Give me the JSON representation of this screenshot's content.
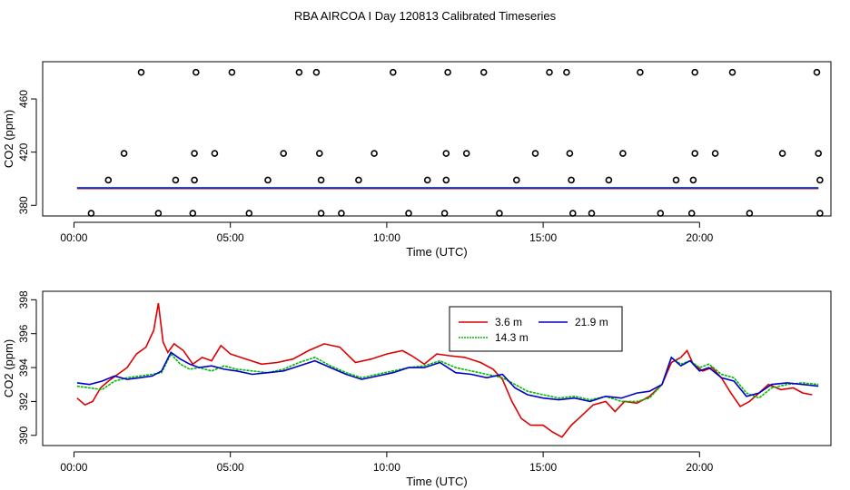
{
  "chart_data": [
    {
      "type": "scatter",
      "title": "RBA AIRCOA I  Day 120813  Calibrated Timeseries",
      "xlabel": "Time (UTC)",
      "ylabel": "CO2 (ppm)",
      "xlim": [
        -1,
        24.2
      ],
      "ylim": [
        372,
        488
      ],
      "x_ticks": [
        0,
        5,
        10,
        15,
        20
      ],
      "x_tick_labels": [
        "00:00",
        "05:00",
        "10:00",
        "15:00",
        "20:00"
      ],
      "y_ticks": [
        380,
        420,
        460
      ],
      "y_tick_labels": [
        "380",
        "420",
        "460"
      ],
      "grid": false,
      "flag_markers": [
        {
          "level": 480,
          "x": [
            2.15,
            3.9,
            5.05,
            7.2,
            7.75,
            10.2,
            11.95,
            13.1,
            15.2,
            15.75,
            18.1,
            19.85,
            21.05,
            23.75
          ]
        },
        {
          "level": 419,
          "x": [
            1.6,
            3.85,
            4.5,
            6.7,
            7.85,
            9.6,
            11.9,
            12.55,
            14.75,
            15.85,
            17.55,
            19.85,
            20.5,
            22.65,
            23.8
          ]
        },
        {
          "level": 399,
          "x": [
            1.1,
            3.25,
            3.85,
            6.2,
            7.9,
            9.1,
            11.3,
            11.9,
            14.15,
            15.9,
            17.1,
            19.25,
            19.8,
            23.85
          ]
        },
        {
          "level": 374,
          "x": [
            0.55,
            2.7,
            3.8,
            5.6,
            7.9,
            8.55,
            10.7,
            11.85,
            13.6,
            15.95,
            16.55,
            18.75,
            19.75,
            21.6,
            23.85
          ]
        }
      ],
      "series": [
        {
          "name": "3.6 m",
          "color": "#dd0000"
        },
        {
          "name": "14.3 m",
          "color": "#00bb00"
        },
        {
          "name": "21.9 m",
          "color": "#0000cc"
        }
      ]
    },
    {
      "type": "line",
      "xlabel": "Time (UTC)",
      "ylabel": "CO2 (ppm)",
      "xlim": [
        -1,
        24.2
      ],
      "ylim": [
        389.4,
        398.5
      ],
      "x_ticks": [
        0,
        5,
        10,
        15,
        20
      ],
      "x_tick_labels": [
        "00:00",
        "05:00",
        "10:00",
        "15:00",
        "20:00"
      ],
      "y_ticks": [
        390,
        392,
        394,
        396,
        398
      ],
      "y_tick_labels": [
        "390",
        "392",
        "394",
        "396",
        "398"
      ],
      "grid": false,
      "legend": {
        "position": "top-center",
        "entries": [
          "3.6 m",
          "21.9 m",
          "14.3 m"
        ]
      },
      "series": [
        {
          "name": "3.6 m",
          "color": "#dd0000",
          "x": [
            0.1,
            0.35,
            0.6,
            0.85,
            1.1,
            1.4,
            1.7,
            2.0,
            2.3,
            2.55,
            2.7,
            2.85,
            3.0,
            3.2,
            3.5,
            3.8,
            4.1,
            4.4,
            4.7,
            5.0,
            5.5,
            6.0,
            6.5,
            7.0,
            7.5,
            8.0,
            8.5,
            9.0,
            9.5,
            10.0,
            10.5,
            10.8,
            11.2,
            11.6,
            12.0,
            12.5,
            13.0,
            13.4,
            13.7,
            14.0,
            14.3,
            14.6,
            15.0,
            15.3,
            15.6,
            15.9,
            16.2,
            16.6,
            17.0,
            17.3,
            17.6,
            18.0,
            18.4,
            18.8,
            19.1,
            19.4,
            19.6,
            19.8,
            20.1,
            20.4,
            20.7,
            21.0,
            21.3,
            21.6,
            21.9,
            22.2,
            22.6,
            23.0,
            23.3,
            23.6
          ],
          "y": [
            392.2,
            391.8,
            392.0,
            392.8,
            393.2,
            393.6,
            394.0,
            394.8,
            395.2,
            396.2,
            397.8,
            395.5,
            394.9,
            395.4,
            395.0,
            394.2,
            394.6,
            394.4,
            395.3,
            394.8,
            394.5,
            394.2,
            394.3,
            394.5,
            395.0,
            395.4,
            395.2,
            394.3,
            394.5,
            394.8,
            395.0,
            394.7,
            394.2,
            394.8,
            394.7,
            394.6,
            394.3,
            393.9,
            393.3,
            392.0,
            391.0,
            390.6,
            390.6,
            390.2,
            389.9,
            390.6,
            391.1,
            391.8,
            392.0,
            391.4,
            392.0,
            391.9,
            392.3,
            393.0,
            394.3,
            394.6,
            395.0,
            394.2,
            393.8,
            394.0,
            393.4,
            392.5,
            391.7,
            392.0,
            392.5,
            393.0,
            392.7,
            392.8,
            392.5,
            392.4
          ]
        },
        {
          "name": "14.3 m",
          "color": "#00bb00",
          "x": [
            0.1,
            0.5,
            0.9,
            1.3,
            1.7,
            2.1,
            2.5,
            2.8,
            3.1,
            3.4,
            3.7,
            4.0,
            4.4,
            4.8,
            5.2,
            5.7,
            6.2,
            6.7,
            7.2,
            7.7,
            8.2,
            8.7,
            9.2,
            9.7,
            10.2,
            10.7,
            11.2,
            11.7,
            12.2,
            12.7,
            13.2,
            13.7,
            14.1,
            14.5,
            15.0,
            15.5,
            16.0,
            16.5,
            17.0,
            17.5,
            18.0,
            18.4,
            18.8,
            19.1,
            19.4,
            19.7,
            20.0,
            20.3,
            20.7,
            21.1,
            21.5,
            21.9,
            22.3,
            22.8,
            23.3,
            23.8
          ],
          "y": [
            392.9,
            392.8,
            392.7,
            393.2,
            393.4,
            393.5,
            393.6,
            393.7,
            394.8,
            394.2,
            393.9,
            394.0,
            393.8,
            394.1,
            393.9,
            393.8,
            393.7,
            393.9,
            394.3,
            394.6,
            394.1,
            393.7,
            393.4,
            393.6,
            393.8,
            394.0,
            394.1,
            394.4,
            394.0,
            393.8,
            393.6,
            393.4,
            393.0,
            392.6,
            392.4,
            392.2,
            392.3,
            392.1,
            392.3,
            392.0,
            392.0,
            392.2,
            393.0,
            394.6,
            394.2,
            394.4,
            394.0,
            394.2,
            393.6,
            393.4,
            392.5,
            392.2,
            392.8,
            393.0,
            393.1,
            393.0
          ]
        },
        {
          "name": "21.9 m",
          "color": "#0000cc",
          "x": [
            0.1,
            0.5,
            0.9,
            1.3,
            1.7,
            2.1,
            2.5,
            2.8,
            3.1,
            3.4,
            3.7,
            4.0,
            4.4,
            4.8,
            5.2,
            5.7,
            6.2,
            6.7,
            7.2,
            7.7,
            8.2,
            8.7,
            9.2,
            9.7,
            10.2,
            10.7,
            11.2,
            11.7,
            12.2,
            12.7,
            13.2,
            13.7,
            14.1,
            14.5,
            15.0,
            15.5,
            16.0,
            16.5,
            17.0,
            17.5,
            18.0,
            18.4,
            18.8,
            19.1,
            19.4,
            19.7,
            20.0,
            20.3,
            20.7,
            21.1,
            21.5,
            21.9,
            22.3,
            22.8,
            23.3,
            23.8
          ],
          "y": [
            393.1,
            393.0,
            393.2,
            393.5,
            393.3,
            393.4,
            393.5,
            393.8,
            394.9,
            394.5,
            394.2,
            394.0,
            394.1,
            393.9,
            393.8,
            393.6,
            393.7,
            393.8,
            394.1,
            394.4,
            394.0,
            393.6,
            393.3,
            393.5,
            393.7,
            394.0,
            394.0,
            394.3,
            393.7,
            393.6,
            393.4,
            393.6,
            392.8,
            392.4,
            392.2,
            392.1,
            392.2,
            392.0,
            392.3,
            392.2,
            392.5,
            392.6,
            393.0,
            394.6,
            394.1,
            394.4,
            393.8,
            394.0,
            393.4,
            393.2,
            392.3,
            392.5,
            393.0,
            393.1,
            393.0,
            392.9
          ]
        }
      ]
    }
  ]
}
